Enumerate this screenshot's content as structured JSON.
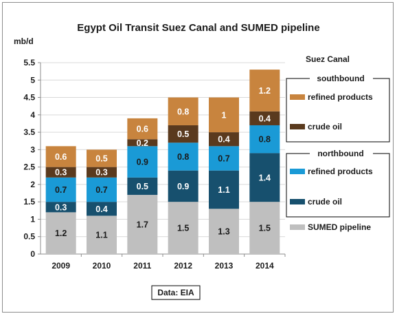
{
  "chart_data": {
    "type": "bar",
    "stacked": true,
    "title": "Egypt Oil Transit Suez Canal and SUMED pipeline",
    "ylabel": "mb/d",
    "ylim": [
      0,
      5.5
    ],
    "yticks": [
      "0",
      "0.5",
      "1",
      "1.5",
      "2",
      "2.5",
      "3",
      "3.5",
      "4",
      "4.5",
      "5",
      "5.5"
    ],
    "categories": [
      "2009",
      "2010",
      "2011",
      "2012",
      "2013",
      "2014"
    ],
    "grid": true,
    "legend_position": "right",
    "series": [
      {
        "name": "SUMED pipeline",
        "color": "#bfbfbf",
        "label_color": "#1a1a1a",
        "values": [
          1.2,
          1.1,
          1.7,
          1.5,
          1.3,
          1.5
        ]
      },
      {
        "name": "crude oil",
        "group": "northbound",
        "color": "#17506e",
        "label_color": "#ffffff",
        "values": [
          0.3,
          0.4,
          0.5,
          0.9,
          1.1,
          1.4
        ]
      },
      {
        "name": "refined products",
        "group": "northbound",
        "color": "#1a9ad6",
        "label_color": "#1a1a1a",
        "values": [
          0.7,
          0.7,
          0.9,
          0.8,
          0.7,
          0.8
        ]
      },
      {
        "name": "crude oil",
        "group": "southbound",
        "color": "#5a3a1e",
        "label_color": "#ffffff",
        "values": [
          0.3,
          0.3,
          0.2,
          0.5,
          0.4,
          0.4
        ]
      },
      {
        "name": "refined products",
        "group": "southbound",
        "color": "#c8843e",
        "label_color": "#ffffff",
        "values": [
          0.6,
          0.5,
          0.6,
          0.8,
          1,
          1.2
        ]
      }
    ],
    "legend": {
      "heading": "Suez Canal",
      "southbound_label": "southbound",
      "northbound_label": "northbound"
    },
    "source_note": "Data: EIA"
  }
}
